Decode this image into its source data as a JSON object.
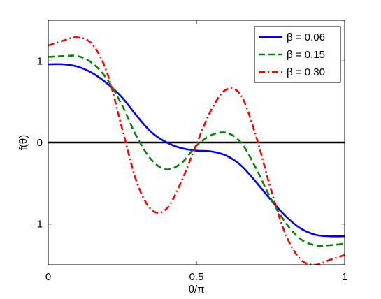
{
  "chart_data": {
    "type": "line",
    "xlabel": "θ/π",
    "ylabel": "f(θ)",
    "xlim": [
      0,
      1
    ],
    "ylim": [
      -1.5,
      1.5
    ],
    "x_ticks": [
      0,
      0.5,
      1
    ],
    "x_tick_labels": [
      "0",
      "0.5",
      "1"
    ],
    "y_ticks": [
      -1,
      0,
      1
    ],
    "y_tick_labels": [
      "−1",
      "0",
      "1"
    ],
    "grid": false,
    "legend_position": "top-right",
    "reference_line": {
      "y": 0,
      "color": "#000000"
    },
    "series": [
      {
        "name": "β = 0.06",
        "color": "#0000ff",
        "style": "solid",
        "x": [
          0,
          0.05,
          0.1,
          0.15,
          0.2,
          0.25,
          0.3,
          0.35,
          0.4,
          0.45,
          0.5,
          0.55,
          0.6,
          0.65,
          0.7,
          0.75,
          0.8,
          0.85,
          0.9,
          0.95,
          1
        ],
        "y": [
          0.96,
          0.96,
          0.93,
          0.85,
          0.72,
          0.55,
          0.32,
          0.12,
          0.0,
          -0.07,
          -0.1,
          -0.11,
          -0.16,
          -0.28,
          -0.48,
          -0.7,
          -0.9,
          -1.05,
          -1.13,
          -1.15,
          -1.15
        ]
      },
      {
        "name": "β = 0.15",
        "color": "#008800",
        "style": "dashed",
        "x": [
          0,
          0.05,
          0.1,
          0.15,
          0.2,
          0.25,
          0.3,
          0.35,
          0.4,
          0.45,
          0.5,
          0.55,
          0.6,
          0.65,
          0.7,
          0.75,
          0.8,
          0.85,
          0.9,
          0.95,
          1
        ],
        "y": [
          1.05,
          1.06,
          1.06,
          0.97,
          0.77,
          0.45,
          0.06,
          -0.22,
          -0.33,
          -0.25,
          -0.04,
          0.09,
          0.12,
          0.0,
          -0.31,
          -0.68,
          -0.98,
          -1.18,
          -1.26,
          -1.26,
          -1.24
        ]
      },
      {
        "name": "β = 0.30",
        "color": "#ff0000",
        "style": "dashdot",
        "x": [
          0,
          0.05,
          0.1,
          0.15,
          0.2,
          0.25,
          0.3,
          0.35,
          0.4,
          0.45,
          0.5,
          0.55,
          0.6,
          0.65,
          0.7,
          0.75,
          0.8,
          0.85,
          0.9,
          0.95,
          1
        ],
        "y": [
          1.19,
          1.25,
          1.29,
          1.2,
          0.84,
          0.16,
          -0.5,
          -0.83,
          -0.81,
          -0.47,
          -0.02,
          0.4,
          0.65,
          0.58,
          0.09,
          -0.56,
          -1.12,
          -1.43,
          -1.5,
          -1.44,
          -1.38
        ]
      }
    ]
  }
}
